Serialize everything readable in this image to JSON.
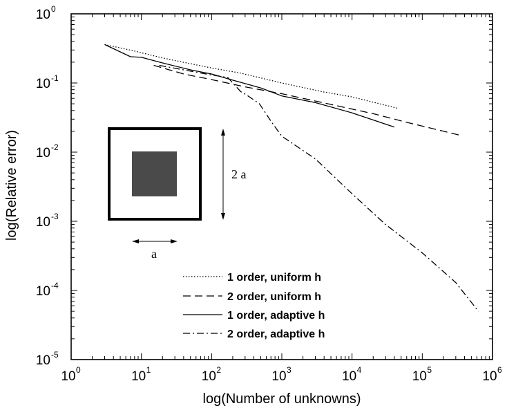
{
  "chart_data": {
    "type": "line",
    "xlabel": "log(Number of unknowns)",
    "ylabel": "log(Relative error)",
    "xscale": "log",
    "yscale": "log",
    "xlim": [
      1,
      1000000
    ],
    "ylim": [
      1e-05,
      1
    ],
    "x_ticks": [
      {
        "base": "10",
        "exp": "0",
        "value": 1
      },
      {
        "base": "10",
        "exp": "1",
        "value": 10
      },
      {
        "base": "10",
        "exp": "2",
        "value": 100
      },
      {
        "base": "10",
        "exp": "3",
        "value": 1000
      },
      {
        "base": "10",
        "exp": "4",
        "value": 10000
      },
      {
        "base": "10",
        "exp": "5",
        "value": 100000
      },
      {
        "base": "10",
        "exp": "6",
        "value": 1000000
      }
    ],
    "y_ticks": [
      {
        "base": "10",
        "exp": "0",
        "value": 1
      },
      {
        "base": "10",
        "exp": "-1",
        "value": 0.1
      },
      {
        "base": "10",
        "exp": "-2",
        "value": 0.01
      },
      {
        "base": "10",
        "exp": "-3",
        "value": 0.001
      },
      {
        "base": "10",
        "exp": "-4",
        "value": 0.0001
      },
      {
        "base": "10",
        "exp": "-5",
        "value": 1e-05
      }
    ],
    "grid": false,
    "legend_position": "lower-center",
    "series": [
      {
        "name": "1 order, uniform h",
        "dash": "dotted",
        "points": [
          [
            3,
            0.36
          ],
          [
            8,
            0.29
          ],
          [
            20,
            0.23
          ],
          [
            50,
            0.19
          ],
          [
            100,
            0.165
          ],
          [
            250,
            0.14
          ],
          [
            1000,
            0.1
          ],
          [
            4000,
            0.074
          ],
          [
            10000,
            0.063
          ],
          [
            45000,
            0.043
          ]
        ]
      },
      {
        "name": "2 order, uniform h",
        "dash": "dashed",
        "points": [
          [
            15,
            0.18
          ],
          [
            40,
            0.135
          ],
          [
            100,
            0.112
          ],
          [
            300,
            0.088
          ],
          [
            1000,
            0.07
          ],
          [
            5000,
            0.049
          ],
          [
            20000,
            0.036
          ],
          [
            60000,
            0.027
          ],
          [
            350000,
            0.0175
          ]
        ]
      },
      {
        "name": "1 order, adaptive h",
        "dash": "solid",
        "points": [
          [
            3,
            0.36
          ],
          [
            7,
            0.24
          ],
          [
            10,
            0.235
          ],
          [
            20,
            0.195
          ],
          [
            50,
            0.155
          ],
          [
            100,
            0.135
          ],
          [
            200,
            0.11
          ],
          [
            500,
            0.085
          ],
          [
            1000,
            0.065
          ],
          [
            3000,
            0.052
          ],
          [
            10000,
            0.037
          ],
          [
            40000,
            0.023
          ]
        ]
      },
      {
        "name": "2 order, adaptive h",
        "dash": "dashdot",
        "points": [
          [
            18,
            0.18
          ],
          [
            40,
            0.155
          ],
          [
            90,
            0.133
          ],
          [
            170,
            0.12
          ],
          [
            260,
            0.075
          ],
          [
            330,
            0.065
          ],
          [
            480,
            0.05
          ],
          [
            700,
            0.028
          ],
          [
            1000,
            0.017
          ],
          [
            3000,
            0.008
          ],
          [
            10000,
            0.0025
          ],
          [
            30000,
            0.0009
          ],
          [
            100000,
            0.00035
          ],
          [
            300000,
            0.00013
          ],
          [
            630000,
            5e-05
          ]
        ]
      }
    ],
    "inset": {
      "height_label": "2 a",
      "width_label": "a"
    }
  }
}
